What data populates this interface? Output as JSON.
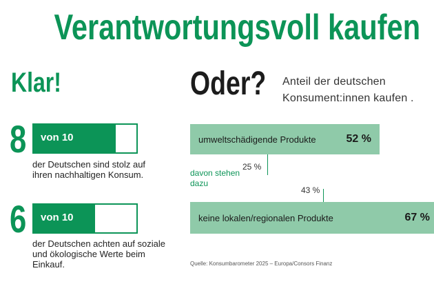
{
  "title": "Verantwortungsvoll kaufen",
  "klar": "Klar!",
  "oder": "Oder?",
  "oder_sub": "Anteil der deutschen Konsument:innen kaufen .",
  "stats": [
    {
      "number": "8",
      "label": "von 10",
      "value": 8,
      "of": 10,
      "text": "der Deutschen sind stolz auf ihren nachhaltigen Konsum."
    },
    {
      "number": "6",
      "label": "von 10",
      "value": 6,
      "of": 10,
      "text": "der Deutschen achten auf soziale und ökologische Werte beim Einkauf."
    }
  ],
  "chart_data": {
    "type": "bar",
    "categories": [
      "umweltschädigende Produkte",
      "keine lokalen/regionalen Produkte"
    ],
    "values": [
      52,
      67
    ],
    "value_labels": [
      "52 %",
      "67 %"
    ],
    "sub_label": "davon stehen dazu",
    "sub_values": [
      25,
      43
    ],
    "sub_value_labels": [
      "25 %",
      "43 %"
    ],
    "unit": "%",
    "colors": {
      "primary": "#0c9457",
      "bar": "#8fcaa9"
    }
  },
  "source": "Quelle: Konsumbarometer 2025 – Europa/Consors Finanz"
}
